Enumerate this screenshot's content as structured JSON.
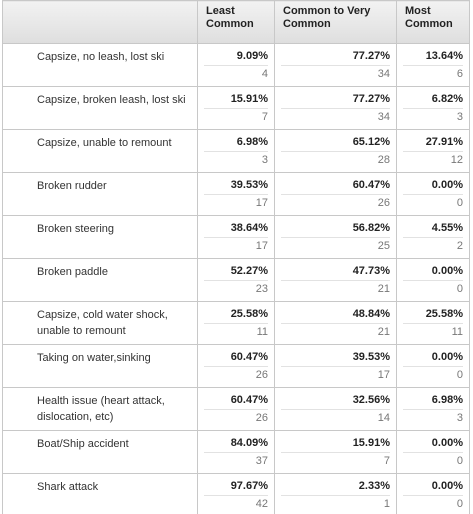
{
  "table": {
    "headers": [
      "Least Common",
      "Common to Very Common",
      "Most Common"
    ],
    "rows": [
      {
        "label": "Capsize, no leash, lost ski",
        "cells": [
          {
            "percent": "9.09%",
            "count": 4
          },
          {
            "percent": "77.27%",
            "count": 34
          },
          {
            "percent": "13.64%",
            "count": 6
          }
        ]
      },
      {
        "label": "Capsize, broken leash, lost ski",
        "cells": [
          {
            "percent": "15.91%",
            "count": 7
          },
          {
            "percent": "77.27%",
            "count": 34
          },
          {
            "percent": "6.82%",
            "count": 3
          }
        ]
      },
      {
        "label": "Capsize, unable to remount",
        "cells": [
          {
            "percent": "6.98%",
            "count": 3
          },
          {
            "percent": "65.12%",
            "count": 28
          },
          {
            "percent": "27.91%",
            "count": 12
          }
        ]
      },
      {
        "label": "Broken rudder",
        "cells": [
          {
            "percent": "39.53%",
            "count": 17
          },
          {
            "percent": "60.47%",
            "count": 26
          },
          {
            "percent": "0.00%",
            "count": 0
          }
        ]
      },
      {
        "label": "Broken steering",
        "cells": [
          {
            "percent": "38.64%",
            "count": 17
          },
          {
            "percent": "56.82%",
            "count": 25
          },
          {
            "percent": "4.55%",
            "count": 2
          }
        ]
      },
      {
        "label": "Broken paddle",
        "cells": [
          {
            "percent": "52.27%",
            "count": 23
          },
          {
            "percent": "47.73%",
            "count": 21
          },
          {
            "percent": "0.00%",
            "count": 0
          }
        ]
      },
      {
        "label": "Capsize, cold water shock, unable to remount",
        "cells": [
          {
            "percent": "25.58%",
            "count": 11
          },
          {
            "percent": "48.84%",
            "count": 21
          },
          {
            "percent": "25.58%",
            "count": 11
          }
        ]
      },
      {
        "label": "Taking on water,sinking",
        "cells": [
          {
            "percent": "60.47%",
            "count": 26
          },
          {
            "percent": "39.53%",
            "count": 17
          },
          {
            "percent": "0.00%",
            "count": 0
          }
        ]
      },
      {
        "label": "Health issue (heart attack, dislocation, etc)",
        "cells": [
          {
            "percent": "60.47%",
            "count": 26
          },
          {
            "percent": "32.56%",
            "count": 14
          },
          {
            "percent": "6.98%",
            "count": 3
          }
        ]
      },
      {
        "label": "Boat/Ship accident",
        "cells": [
          {
            "percent": "84.09%",
            "count": 37
          },
          {
            "percent": "15.91%",
            "count": 7
          },
          {
            "percent": "0.00%",
            "count": 0
          }
        ]
      },
      {
        "label": "Shark attack",
        "cells": [
          {
            "percent": "97.67%",
            "count": 42
          },
          {
            "percent": "2.33%",
            "count": 1
          },
          {
            "percent": "0.00%",
            "count": 0
          }
        ]
      }
    ]
  }
}
